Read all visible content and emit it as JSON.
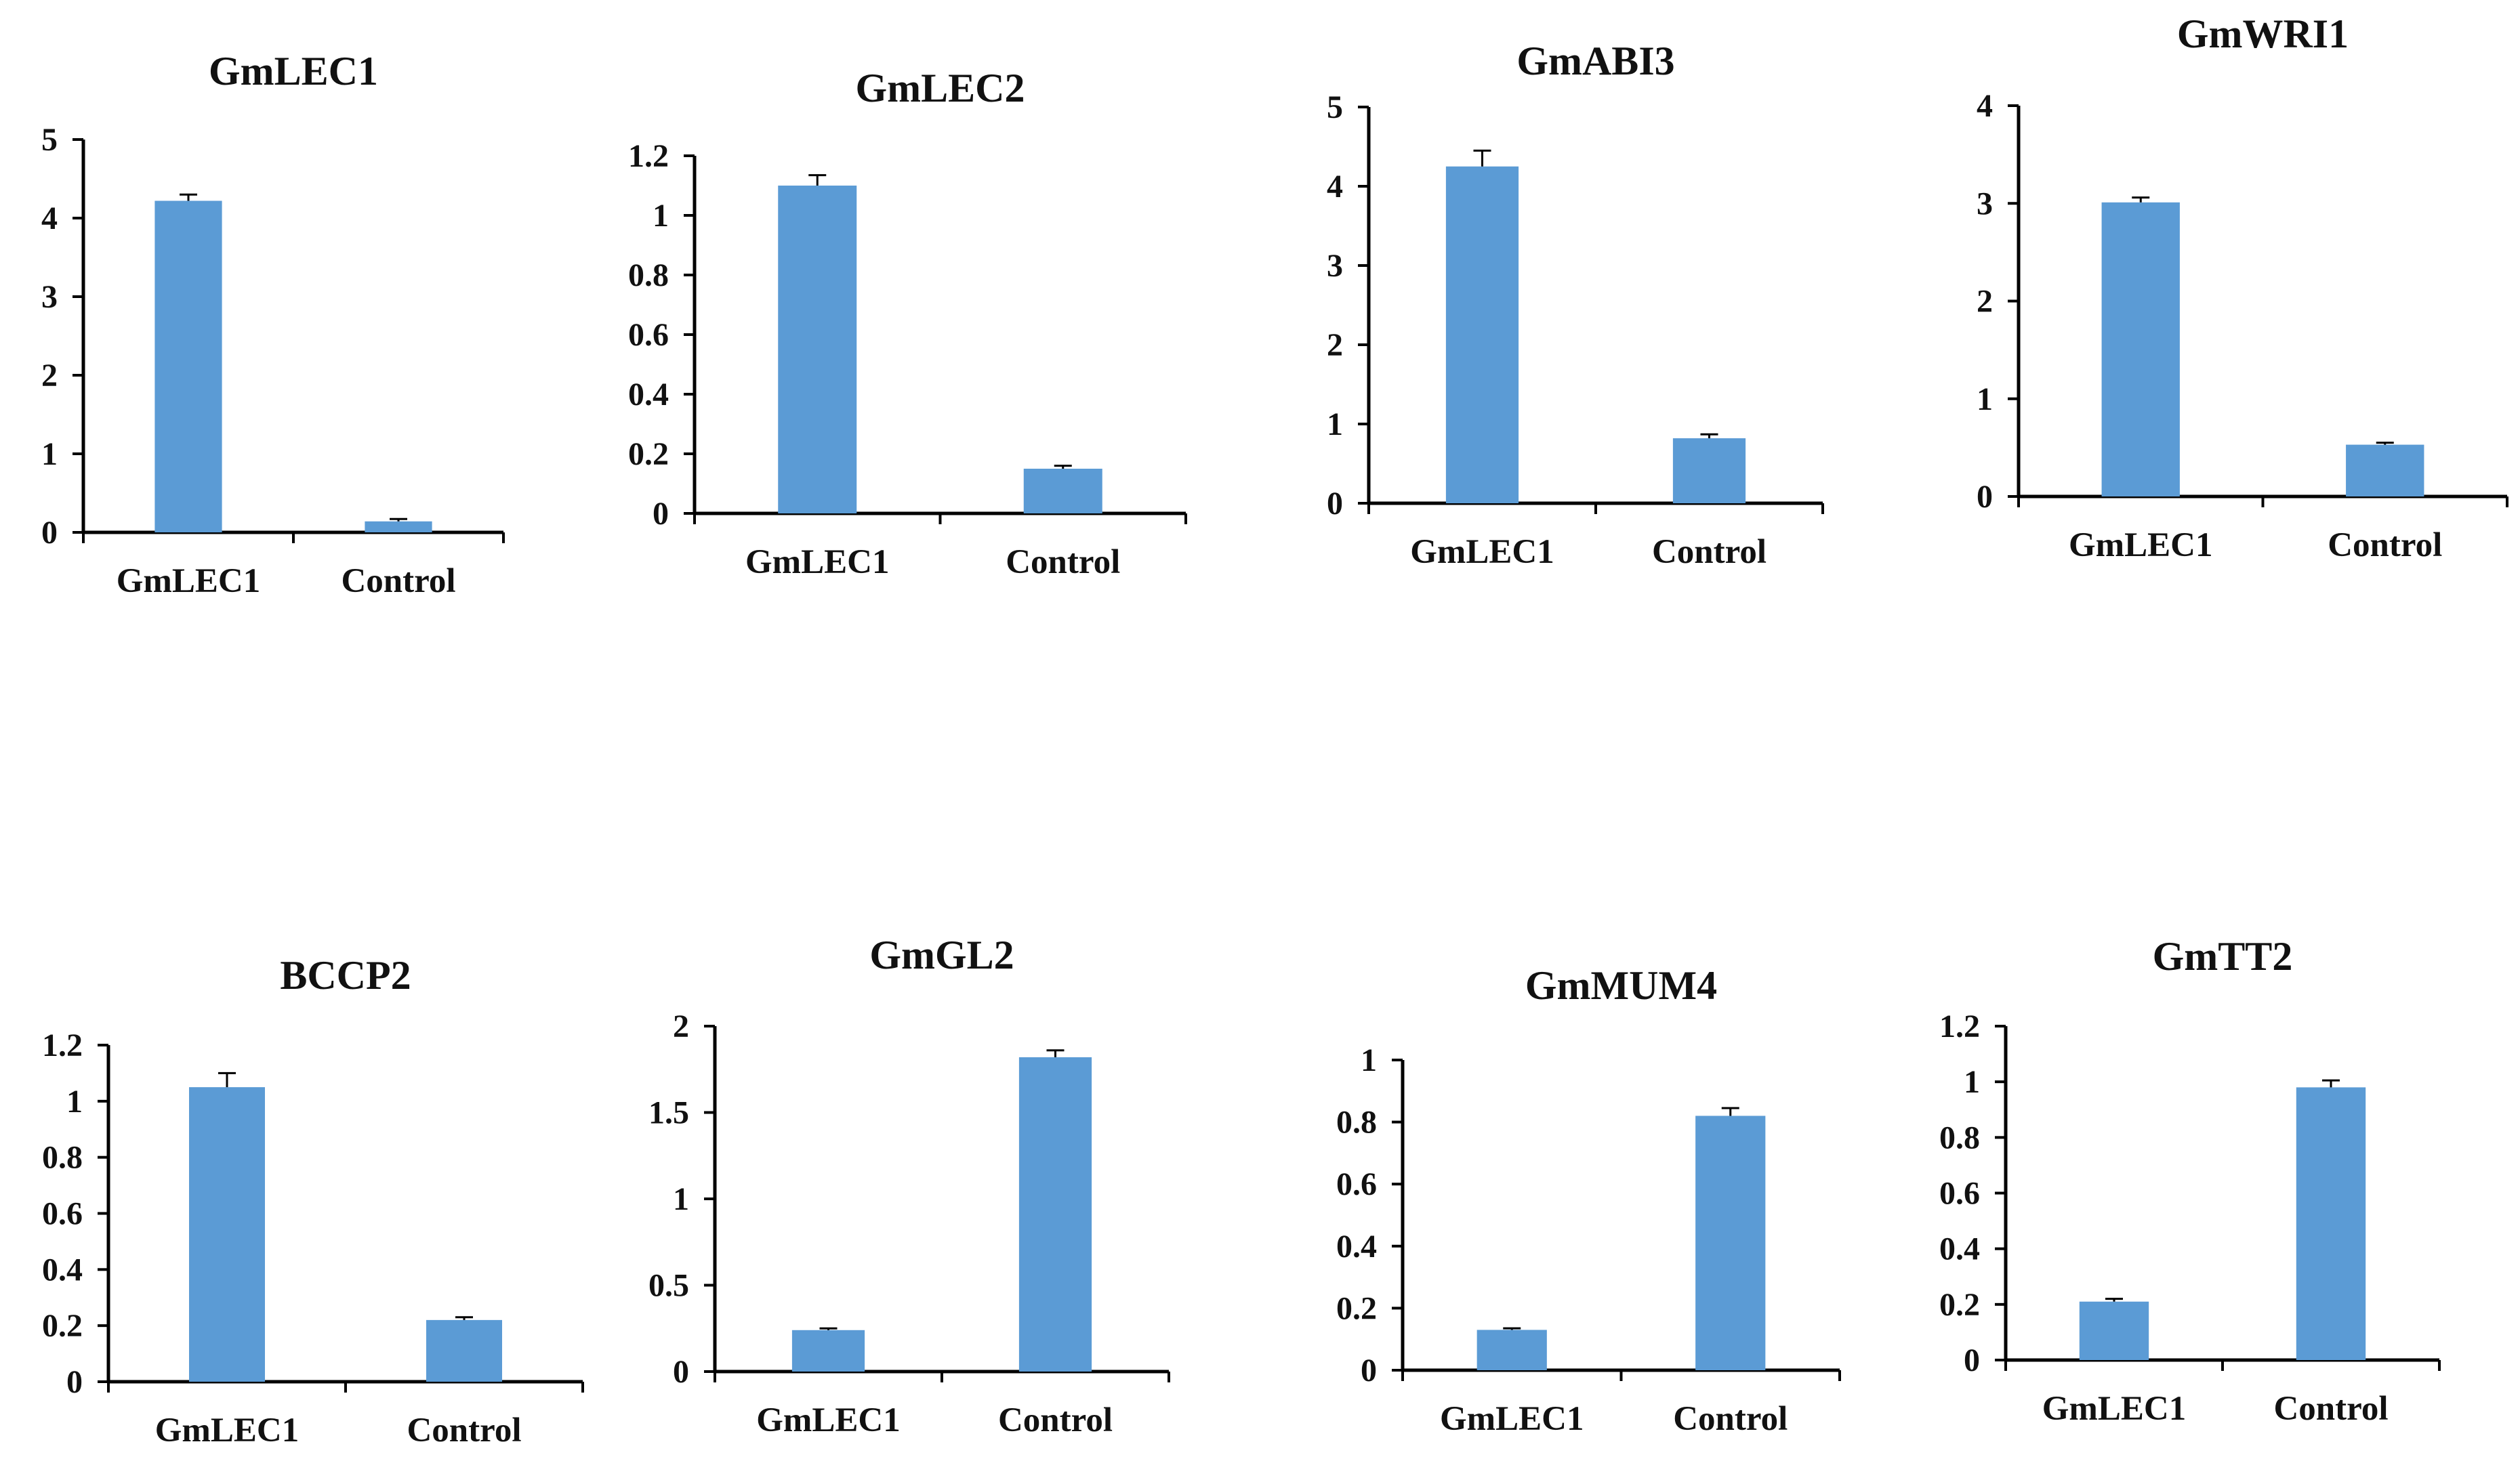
{
  "figure": {
    "bar_color": "#5b9bd5",
    "axis_color": "#000000"
  },
  "chart_data": [
    {
      "type": "bar",
      "title": "GmLEC1",
      "categories": [
        "GmLEC1",
        "Control"
      ],
      "values": [
        4.22,
        0.14
      ],
      "errors": [
        0.08,
        0.03
      ],
      "yticks": [
        "0",
        "1",
        "2",
        "3",
        "4",
        "5"
      ],
      "ylim": [
        0,
        5
      ],
      "xlabel": "",
      "ylabel": ""
    },
    {
      "type": "bar",
      "title": "GmLEC2",
      "categories": [
        "GmLEC1",
        "Control"
      ],
      "values": [
        1.1,
        0.15
      ],
      "errors": [
        0.035,
        0.01
      ],
      "yticks": [
        "0",
        "0.2",
        "0.4",
        "0.6",
        "0.8",
        "1",
        "1.2"
      ],
      "ylim": [
        0,
        1.2
      ],
      "xlabel": "",
      "ylabel": ""
    },
    {
      "type": "bar",
      "title": "GmABI3",
      "categories": [
        "GmLEC1",
        "Control"
      ],
      "values": [
        4.25,
        0.82
      ],
      "errors": [
        0.2,
        0.05
      ],
      "yticks": [
        "0",
        "1",
        "2",
        "3",
        "4",
        "5"
      ],
      "ylim": [
        0,
        5
      ],
      "xlabel": "",
      "ylabel": ""
    },
    {
      "type": "bar",
      "title": "GmWRI1",
      "categories": [
        "GmLEC1",
        "Control"
      ],
      "values": [
        3.01,
        0.53
      ],
      "errors": [
        0.05,
        0.02
      ],
      "yticks": [
        "0",
        "1",
        "2",
        "3",
        "4"
      ],
      "ylim": [
        0,
        4
      ],
      "xlabel": "",
      "ylabel": ""
    },
    {
      "type": "bar",
      "title": "BCCP2",
      "categories": [
        "GmLEC1",
        "Control"
      ],
      "values": [
        1.05,
        0.22
      ],
      "errors": [
        0.05,
        0.01
      ],
      "yticks": [
        "0",
        "0.2",
        "0.4",
        "0.6",
        "0.8",
        "1",
        "1.2"
      ],
      "ylim": [
        0,
        1.2
      ],
      "xlabel": "",
      "ylabel": ""
    },
    {
      "type": "bar",
      "title": "GmGL2",
      "categories": [
        "GmLEC1",
        "Control"
      ],
      "values": [
        0.24,
        1.82
      ],
      "errors": [
        0.01,
        0.04
      ],
      "yticks": [
        "0",
        "0.5",
        "1",
        "1.5",
        "2"
      ],
      "ylim": [
        0,
        2
      ],
      "xlabel": "",
      "ylabel": ""
    },
    {
      "type": "bar",
      "title": "GmMUM4",
      "categories": [
        "GmLEC1",
        "Control"
      ],
      "values": [
        0.13,
        0.82
      ],
      "errors": [
        0.005,
        0.025
      ],
      "yticks": [
        "0",
        "0.2",
        "0.4",
        "0.6",
        "0.8",
        "1"
      ],
      "ylim": [
        0,
        1
      ],
      "xlabel": "",
      "ylabel": ""
    },
    {
      "type": "bar",
      "title": "GmTT2",
      "categories": [
        "GmLEC1",
        "Control"
      ],
      "values": [
        0.21,
        0.98
      ],
      "errors": [
        0.01,
        0.025
      ],
      "yticks": [
        "0",
        "0.2",
        "0.4",
        "0.6",
        "0.8",
        "1",
        "1.2"
      ],
      "ylim": [
        0,
        1.2
      ],
      "xlabel": "",
      "ylabel": ""
    }
  ]
}
